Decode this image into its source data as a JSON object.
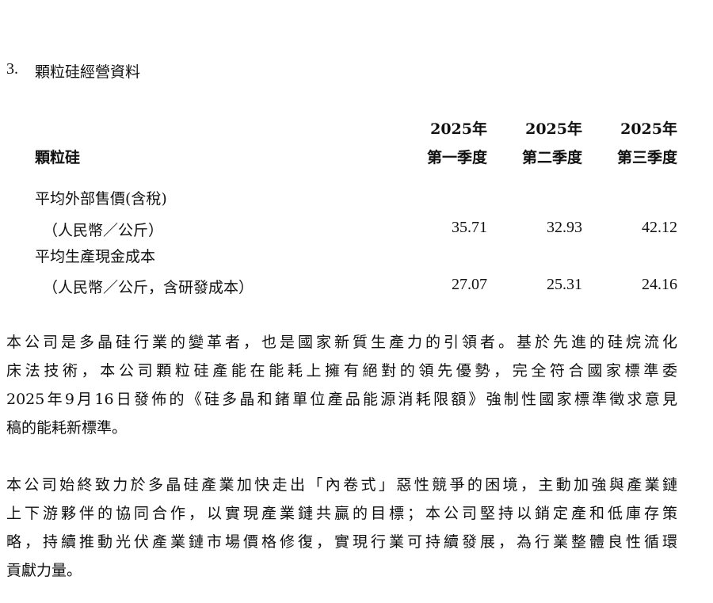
{
  "section": {
    "number": "3.",
    "title": "顆粒硅經營資料"
  },
  "table": {
    "row_header": "顆粒硅",
    "columns": [
      {
        "year": "2025年",
        "quarter": "第一季度"
      },
      {
        "year": "2025年",
        "quarter": "第二季度"
      },
      {
        "year": "2025年",
        "quarter": "第三季度"
      }
    ],
    "rows": [
      {
        "label": "平均外部售價(含稅)",
        "sublabel": "（人民幣／公斤）",
        "values": [
          "35.71",
          "32.93",
          "42.12"
        ]
      },
      {
        "label": "平均生產現金成本",
        "sublabel": "（人民幣／公斤，含研發成本）",
        "values": [
          "27.07",
          "25.31",
          "24.16"
        ]
      }
    ]
  },
  "paragraphs": [
    [
      "本公司是多晶硅行業的變革者，也是國家新質生產力的引領者。基於先進的硅烷流化",
      "床法技術，本公司顆粒硅產能在能耗上擁有絕對的領先優勢，完全符合國家標準委",
      "2025年9月16日發佈的《硅多晶和鍺單位產品能源消耗限額》強制性國家標準徵求意見",
      "稿的能耗新標準。"
    ],
    [
      "本公司始終致力於多晶硅產業加快走出「內卷式」惡性競爭的困境，主動加強與產業鏈",
      "上下游夥伴的協同合作，以實現產業鏈共贏的目標；本公司堅持以銷定產和低庫存策",
      "略，持續推動光伏產業鏈市場價格修復，實現行業可持續發展，為行業整體良性循環",
      "貢獻力量。"
    ]
  ]
}
